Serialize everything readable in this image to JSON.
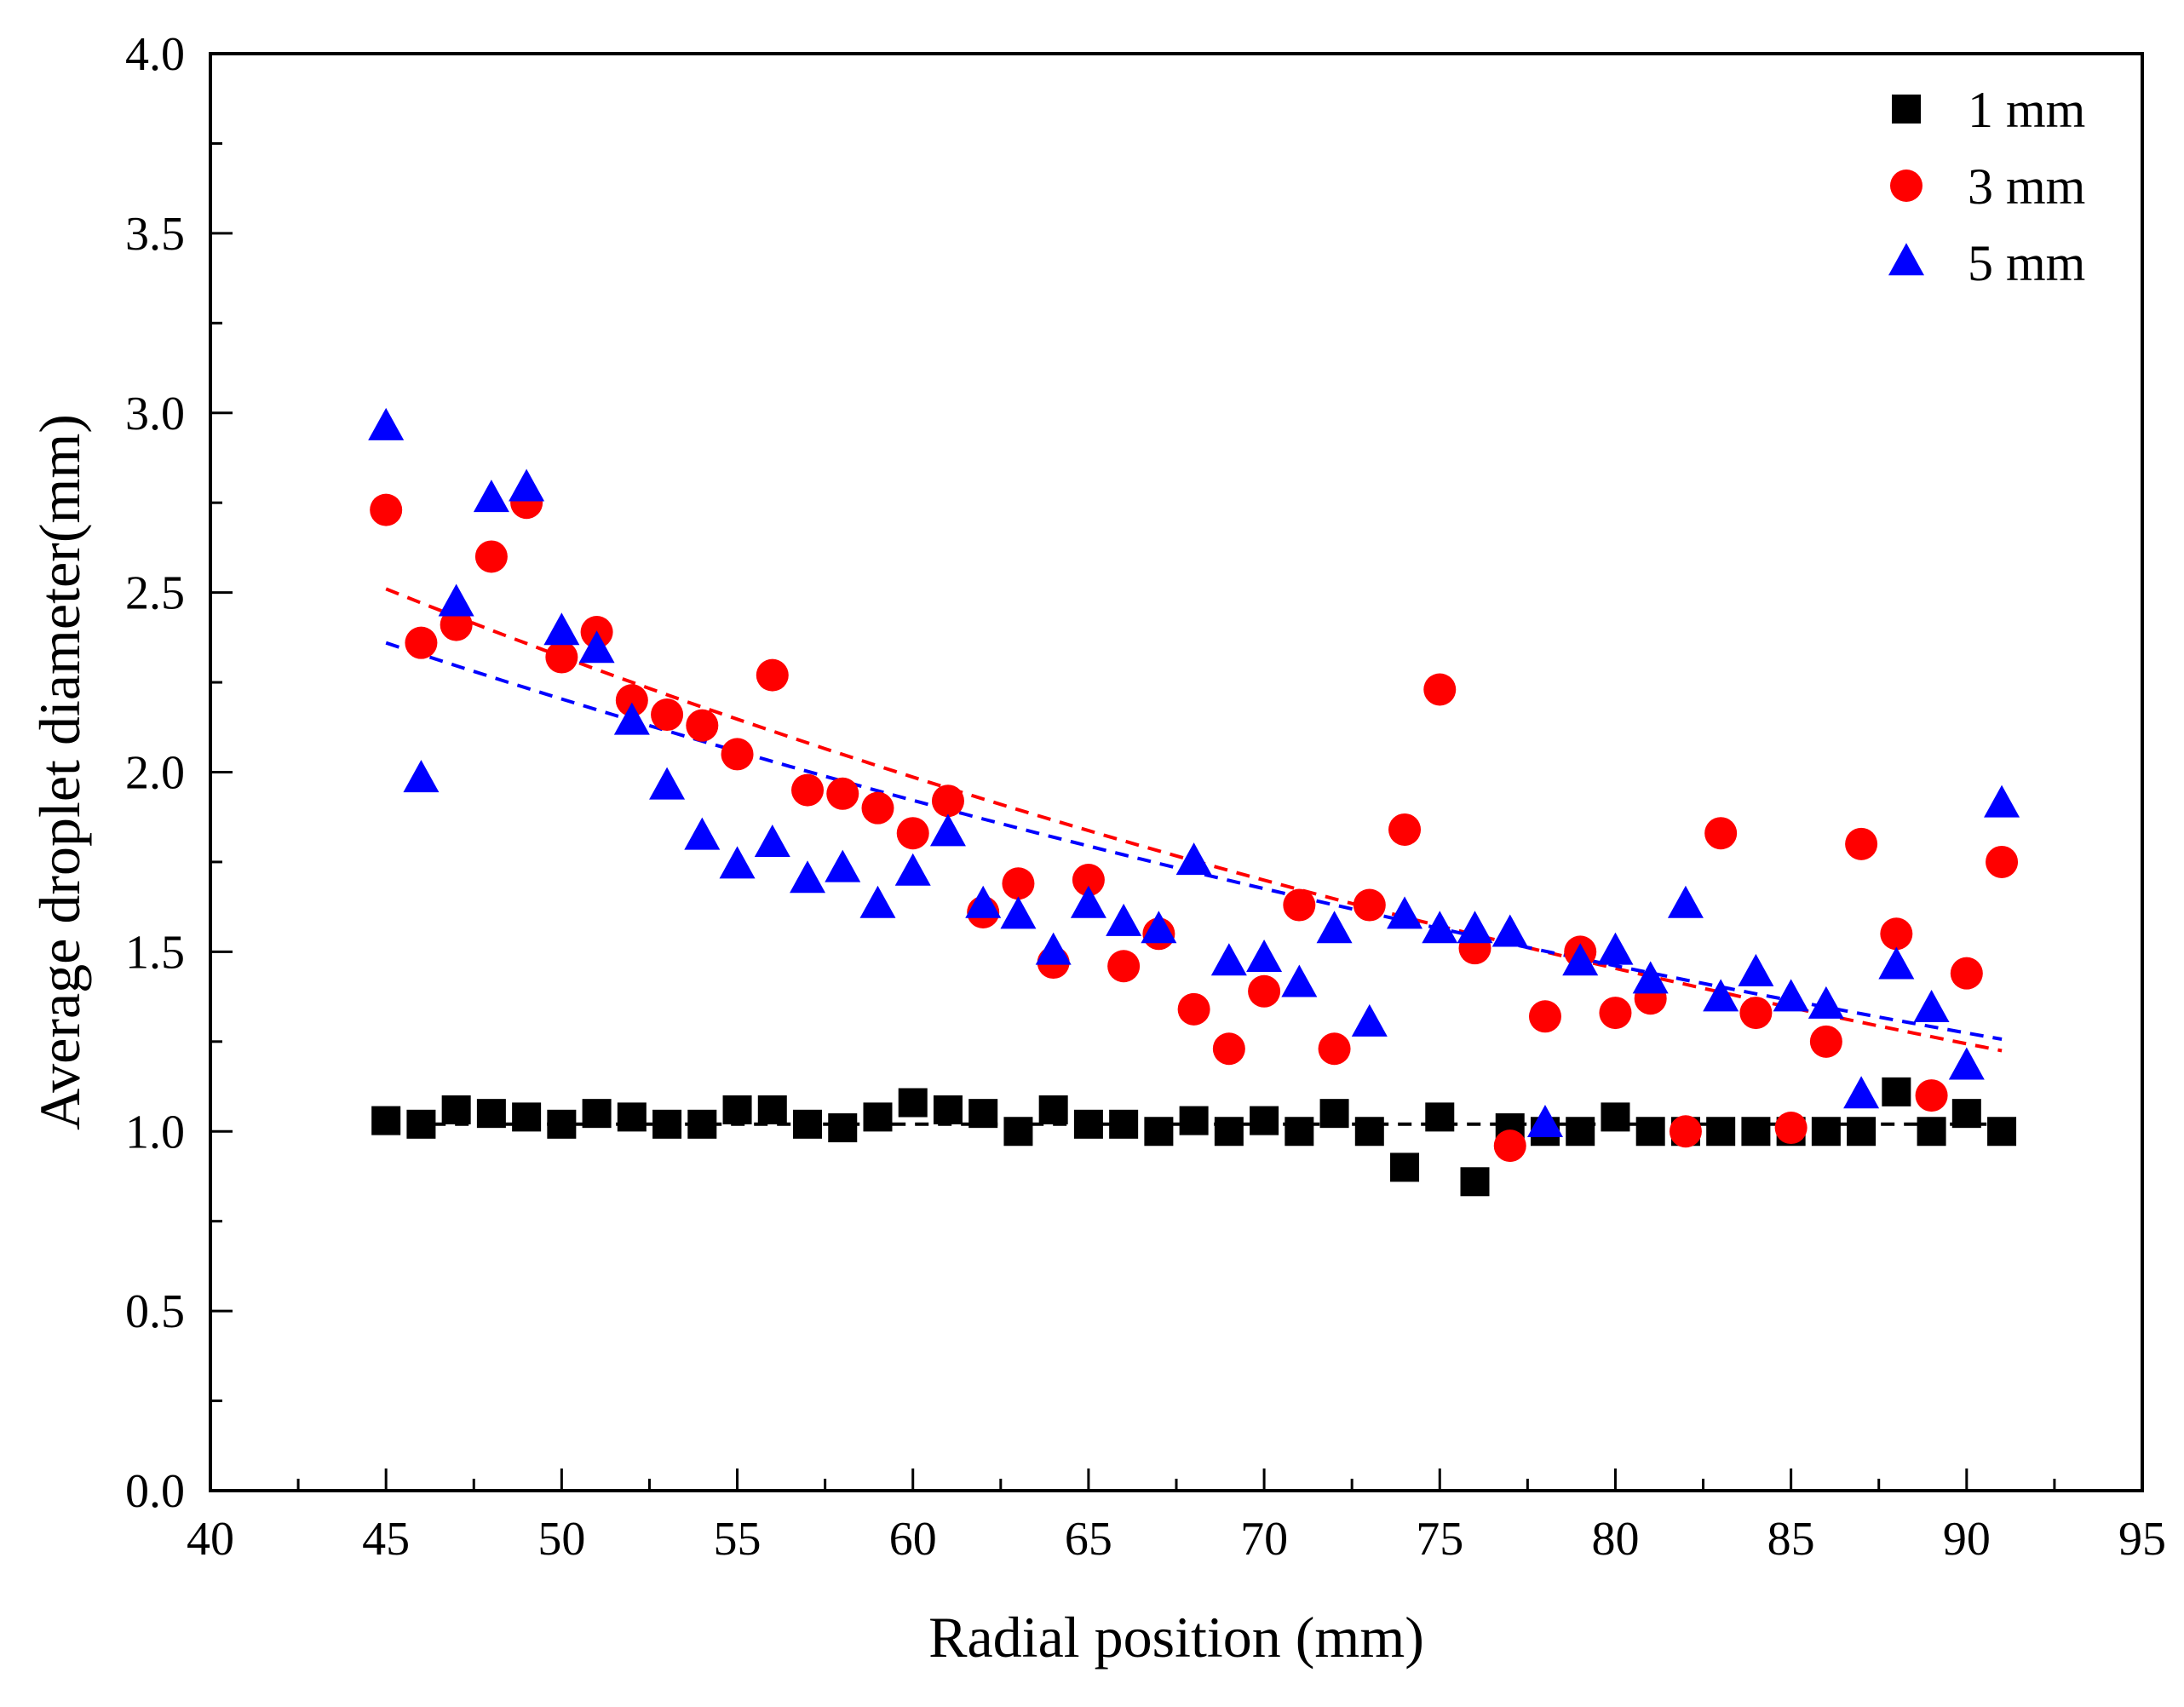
{
  "chart_data": {
    "type": "scatter",
    "title": "",
    "xlabel": "Radial position (mm)",
    "ylabel": "Average droplet diameter(mm)",
    "xlim": [
      40,
      95
    ],
    "ylim": [
      0.0,
      4.0
    ],
    "x_ticks": [
      "40",
      "45",
      "50",
      "55",
      "60",
      "65",
      "70",
      "75",
      "80",
      "85",
      "90",
      "95"
    ],
    "y_ticks": [
      "0.0",
      "0.5",
      "1.0",
      "1.5",
      "2.0",
      "2.5",
      "3.0",
      "3.5",
      "4.0"
    ],
    "grid": false,
    "legend_position": "top-right",
    "x": [
      45,
      46,
      47,
      48,
      49,
      50,
      51,
      52,
      53,
      54,
      55,
      56,
      57,
      58,
      59,
      60,
      61,
      62,
      63,
      64,
      65,
      66,
      67,
      68,
      69,
      70,
      71,
      72,
      73,
      74,
      75,
      76,
      77,
      78,
      79,
      80,
      81,
      82,
      83,
      84,
      85,
      86,
      87,
      88,
      89,
      90,
      91
    ],
    "series": [
      {
        "name": "1 mm",
        "marker": "square",
        "color": "#000000",
        "values": [
          1.03,
          1.02,
          1.06,
          1.05,
          1.04,
          1.02,
          1.05,
          1.04,
          1.02,
          1.02,
          1.06,
          1.06,
          1.02,
          1.01,
          1.04,
          1.08,
          1.06,
          1.05,
          1.0,
          1.06,
          1.02,
          1.02,
          1.0,
          1.03,
          1.0,
          1.03,
          1.0,
          1.05,
          1.0,
          0.9,
          1.04,
          0.86,
          1.01,
          1.0,
          1.0,
          1.04,
          1.0,
          1.0,
          1.0,
          1.0,
          1.0,
          1.0,
          1.0,
          1.11,
          1.0,
          1.05,
          1.0
        ],
        "fit": {
          "from": 45,
          "to": 91,
          "a": 1.02,
          "b": 0.0,
          "color": "#000000"
        }
      },
      {
        "name": "3 mm",
        "marker": "circle",
        "color": "#ff0000",
        "values": [
          2.73,
          2.36,
          2.41,
          2.6,
          2.75,
          2.32,
          2.39,
          2.2,
          2.16,
          2.13,
          2.05,
          2.27,
          1.95,
          1.94,
          1.9,
          1.83,
          1.92,
          1.61,
          1.69,
          1.47,
          1.7,
          1.46,
          1.55,
          1.34,
          1.23,
          1.39,
          1.63,
          1.23,
          1.63,
          1.84,
          2.23,
          1.51,
          0.96,
          1.32,
          1.5,
          1.33,
          1.37,
          1.0,
          1.83,
          1.33,
          1.01,
          1.25,
          1.8,
          1.55,
          1.1,
          1.44,
          1.75
        ],
        "fit": {
          "from": 45,
          "to": 91,
          "a": 2.51,
          "b": 0.0156,
          "color": "#ff0000"
        }
      },
      {
        "name": "5 mm",
        "marker": "triangle",
        "color": "#0000ff",
        "values": [
          2.96,
          1.98,
          2.47,
          2.76,
          2.79,
          2.39,
          2.34,
          2.14,
          1.96,
          1.82,
          1.74,
          1.8,
          1.7,
          1.73,
          1.63,
          1.72,
          1.83,
          1.63,
          1.6,
          1.5,
          1.63,
          1.58,
          1.56,
          1.75,
          1.47,
          1.48,
          1.41,
          1.56,
          1.3,
          1.6,
          1.56,
          1.56,
          1.55,
          1.02,
          1.47,
          1.5,
          1.42,
          1.63,
          1.37,
          1.44,
          1.37,
          1.35,
          1.1,
          1.46,
          1.34,
          1.18,
          1.91
        ],
        "fit": {
          "from": 45,
          "to": 91,
          "a": 2.36,
          "b": 0.0137,
          "color": "#0000ff"
        }
      }
    ]
  }
}
